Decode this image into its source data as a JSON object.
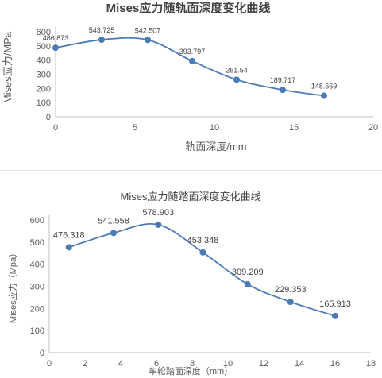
{
  "chart_data": [
    {
      "type": "line",
      "title": "Mises应力随轨面深度变化曲线",
      "xlabel": "轨面深度/mm",
      "ylabel": "Mises应力/MPa",
      "xlim": [
        0,
        20
      ],
      "ylim": [
        0,
        600
      ],
      "xticks": [
        0,
        5,
        10,
        15,
        20
      ],
      "yticks": [
        0,
        100,
        200,
        300,
        400,
        500,
        600
      ],
      "grid": false,
      "smooth": true,
      "color": "#4a7ab8",
      "x": [
        0,
        2.9,
        5.8,
        8.6,
        11.4,
        14.3,
        16.9
      ],
      "y": [
        486.873,
        543.725,
        542.507,
        393.797,
        261.54,
        189.717,
        148.669
      ],
      "labels": [
        "486.873",
        "543.725",
        "542.507",
        "393.797",
        "261.54",
        "189.717",
        "148.669"
      ]
    },
    {
      "type": "line",
      "title": "Mises应力随踏面深度变化曲线",
      "xlabel": "车轮踏面深度（mm）",
      "ylabel": "Mises应力（Mpa）",
      "xlim": [
        0,
        18
      ],
      "ylim": [
        0,
        600
      ],
      "xticks": [
        0,
        2,
        4,
        6,
        8,
        10,
        12,
        14,
        16,
        18
      ],
      "yticks": [
        0,
        100,
        200,
        300,
        400,
        500,
        600
      ],
      "grid": false,
      "smooth": true,
      "color": "#4a7ab8",
      "x": [
        1.1,
        3.6,
        6.1,
        8.6,
        11.1,
        13.5,
        16.0
      ],
      "y": [
        476.318,
        541.558,
        578.903,
        453.348,
        309.209,
        229.353,
        165.913
      ],
      "labels": [
        "476.318",
        "541.558",
        "578.903",
        "453.348",
        "309.209",
        "229.353",
        "165.913"
      ]
    }
  ]
}
